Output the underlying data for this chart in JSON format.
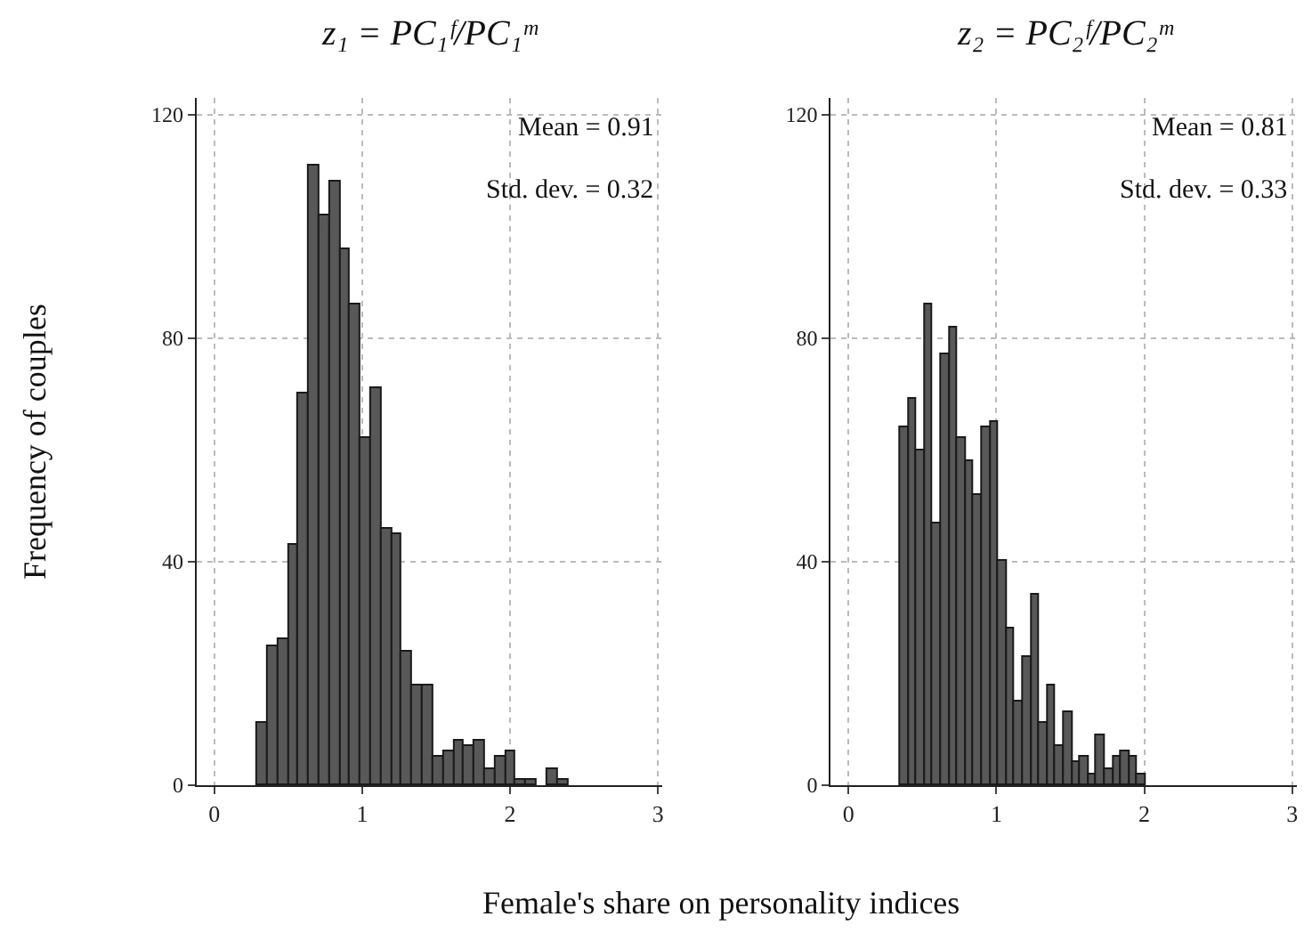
{
  "chart_data": [
    {
      "type": "histogram",
      "title": "z₁ = PC₁ᶠ/PC₁ᵐ",
      "ylabel": "Frequency of couples",
      "xlabel": "Female's share on personality indices",
      "bins": [
        0.29,
        0.36,
        0.43,
        0.5,
        0.57,
        0.64,
        0.71,
        0.78,
        0.85,
        0.92,
        0.99,
        1.06,
        1.13,
        1.2,
        1.27,
        1.34,
        1.41,
        1.48,
        1.55,
        1.62,
        1.69,
        1.76,
        1.83,
        1.9,
        1.97,
        2.04,
        2.11,
        2.18,
        2.25,
        2.32,
        2.39
      ],
      "values": [
        11,
        25,
        26,
        43,
        70,
        111,
        102,
        108,
        96,
        86,
        62,
        71,
        46,
        45,
        24,
        18,
        18,
        5,
        6,
        8,
        7,
        8,
        3,
        5,
        6,
        1,
        1,
        0,
        3,
        1
      ],
      "color": "#585858",
      "xlim": [
        -0.12,
        3.03
      ],
      "ylim": [
        0,
        123
      ],
      "xticks": [
        0,
        1,
        2,
        3
      ],
      "yticks": [
        0,
        40,
        80,
        120
      ],
      "grid": true,
      "annotations": [
        "Mean = 0.91",
        "Std. dev. = 0.32"
      ]
    },
    {
      "type": "histogram",
      "title": "z₂ = PC₂ᶠ/PC₂ᵐ",
      "bins": [
        0.35,
        0.405,
        0.461,
        0.516,
        0.571,
        0.627,
        0.682,
        0.737,
        0.792,
        0.848,
        0.903,
        0.958,
        1.014,
        1.069,
        1.124,
        1.18,
        1.235,
        1.29,
        1.345,
        1.401,
        1.456,
        1.511,
        1.567,
        1.622,
        1.677,
        1.733,
        1.788,
        1.843,
        1.898,
        1.954,
        2.009
      ],
      "values": [
        64,
        69,
        60,
        86,
        47,
        77,
        82,
        62,
        58,
        52,
        64,
        65,
        40,
        28,
        15,
        23,
        34,
        11,
        18,
        7,
        13,
        4,
        5,
        2,
        9,
        3,
        5,
        6,
        5,
        2
      ],
      "color": "#585858",
      "xlim": [
        -0.12,
        3.03
      ],
      "ylim": [
        0,
        123
      ],
      "xticks": [
        0,
        1,
        2,
        3
      ],
      "yticks": [
        0,
        40,
        80,
        120
      ],
      "grid": true,
      "annotations": [
        "Mean = 0.81",
        "Std. dev. = 0.33"
      ]
    }
  ]
}
